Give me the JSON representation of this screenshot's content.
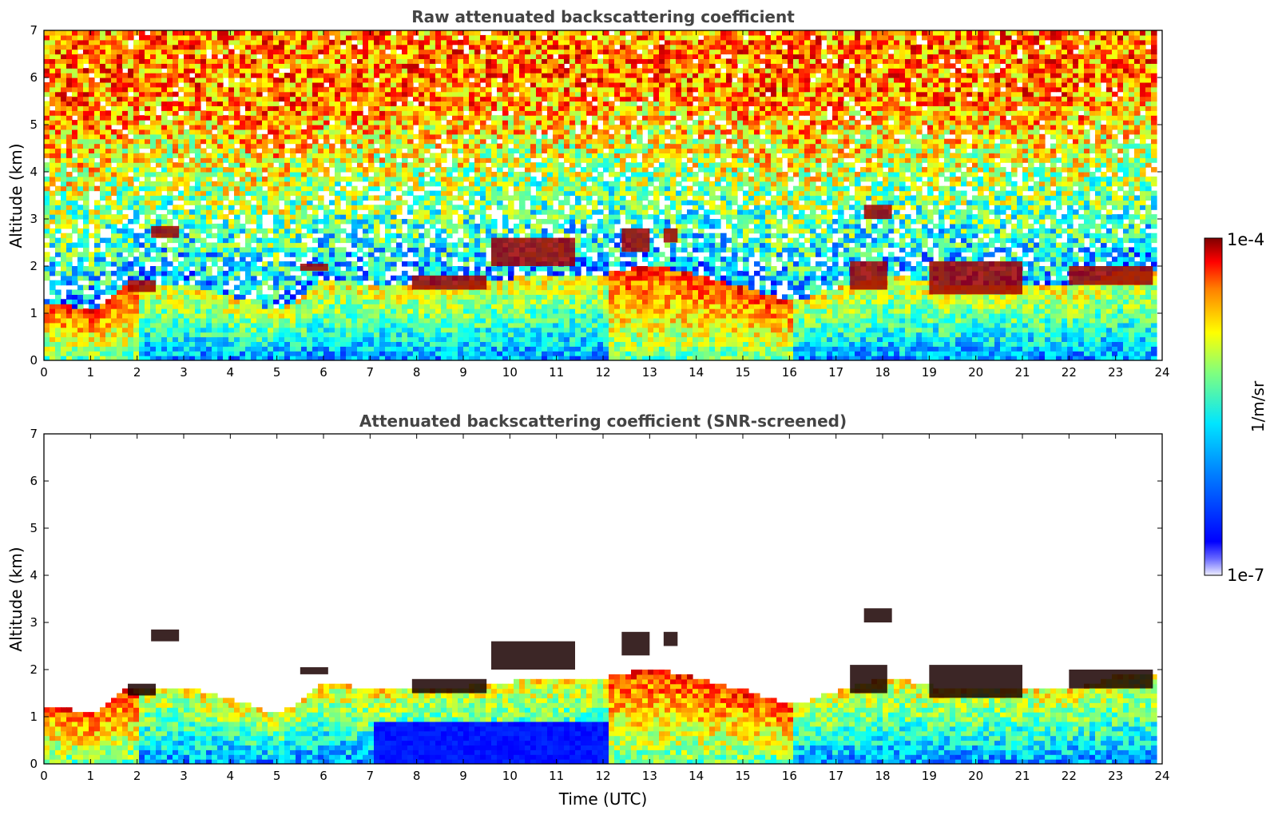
{
  "chart_data": [
    {
      "type": "heatmap",
      "title": "Raw attenuated backscattering coefficient",
      "xlabel": "",
      "ylabel": "Altitude (km)",
      "xlim": [
        0,
        24
      ],
      "ylim": [
        0,
        7
      ],
      "xticks": [
        "0",
        "1",
        "2",
        "3",
        "4",
        "5",
        "6",
        "7",
        "8",
        "9",
        "10",
        "11",
        "12",
        "13",
        "14",
        "15",
        "16",
        "17",
        "18",
        "19",
        "20",
        "21",
        "22",
        "23",
        "24"
      ],
      "yticks": [
        "0",
        "1",
        "2",
        "3",
        "4",
        "5",
        "6",
        "7"
      ],
      "data_end_time": 23.8,
      "colorscale": "jet",
      "screened": false,
      "layers": [
        {
          "name": "boundary layer",
          "points": [
            [
              0,
              1.2
            ],
            [
              1,
              1.0
            ],
            [
              1.8,
              1.6
            ],
            [
              2,
              1.6
            ],
            [
              3,
              1.6
            ],
            [
              4,
              1.3
            ],
            [
              5,
              1.0
            ],
            [
              6,
              1.7
            ],
            [
              7,
              1.5
            ],
            [
              9,
              1.6
            ],
            [
              11,
              1.8
            ],
            [
              12,
              1.8
            ],
            [
              13,
              2.0
            ],
            [
              15,
              1.5
            ],
            [
              16,
              1.2
            ],
            [
              17,
              1.5
            ],
            [
              18,
              1.8
            ],
            [
              19,
              1.6
            ],
            [
              21,
              1.6
            ],
            [
              22,
              1.5
            ],
            [
              23,
              1.85
            ],
            [
              23.8,
              1.9
            ]
          ]
        }
      ],
      "cloud_features": [
        {
          "t_start": 2.3,
          "t_end": 2.9,
          "z_bottom": 2.6,
          "z_top": 2.85
        },
        {
          "t_start": 1.8,
          "t_end": 2.4,
          "z_bottom": 1.45,
          "z_top": 1.7
        },
        {
          "t_start": 5.5,
          "t_end": 6.1,
          "z_bottom": 1.9,
          "z_top": 2.05
        },
        {
          "t_start": 7.9,
          "t_end": 9.5,
          "z_bottom": 1.5,
          "z_top": 1.8
        },
        {
          "t_start": 9.6,
          "t_end": 11.4,
          "z_bottom": 2.0,
          "z_top": 2.6
        },
        {
          "t_start": 12.4,
          "t_end": 13.0,
          "z_bottom": 2.3,
          "z_top": 2.8
        },
        {
          "t_start": 13.3,
          "t_end": 13.6,
          "z_bottom": 2.5,
          "z_top": 2.8
        },
        {
          "t_start": 17.6,
          "t_end": 18.2,
          "z_bottom": 3.0,
          "z_top": 3.3
        },
        {
          "t_start": 17.3,
          "t_end": 18.1,
          "z_bottom": 1.5,
          "z_top": 2.1
        },
        {
          "t_start": 19.0,
          "t_end": 21.0,
          "z_bottom": 1.4,
          "z_top": 2.1
        },
        {
          "t_start": 22.0,
          "t_end": 23.8,
          "z_bottom": 1.6,
          "z_top": 2.0
        }
      ]
    },
    {
      "type": "heatmap",
      "title": "Attenuated backscattering coefficient (SNR-screened)",
      "xlabel": "Time (UTC)",
      "ylabel": "Altitude (km)",
      "xlim": [
        0,
        24
      ],
      "ylim": [
        0,
        7
      ],
      "xticks": [
        "0",
        "1",
        "2",
        "3",
        "4",
        "5",
        "6",
        "7",
        "8",
        "9",
        "10",
        "11",
        "12",
        "13",
        "14",
        "15",
        "16",
        "17",
        "18",
        "19",
        "20",
        "21",
        "22",
        "23",
        "24"
      ],
      "yticks": [
        "0",
        "1",
        "2",
        "3",
        "4",
        "5",
        "6",
        "7"
      ],
      "data_end_time": 23.8,
      "colorscale": "jet",
      "screened": true
    }
  ],
  "colorbar": {
    "label": "1/m/sr",
    "max_label": "1e-4",
    "min_label": "1e-7",
    "colors": [
      "#00007f",
      "#0000ff",
      "#007fff",
      "#00ffff",
      "#7fff7f",
      "#ffff00",
      "#ff7f00",
      "#ff0000",
      "#7f0000"
    ]
  }
}
